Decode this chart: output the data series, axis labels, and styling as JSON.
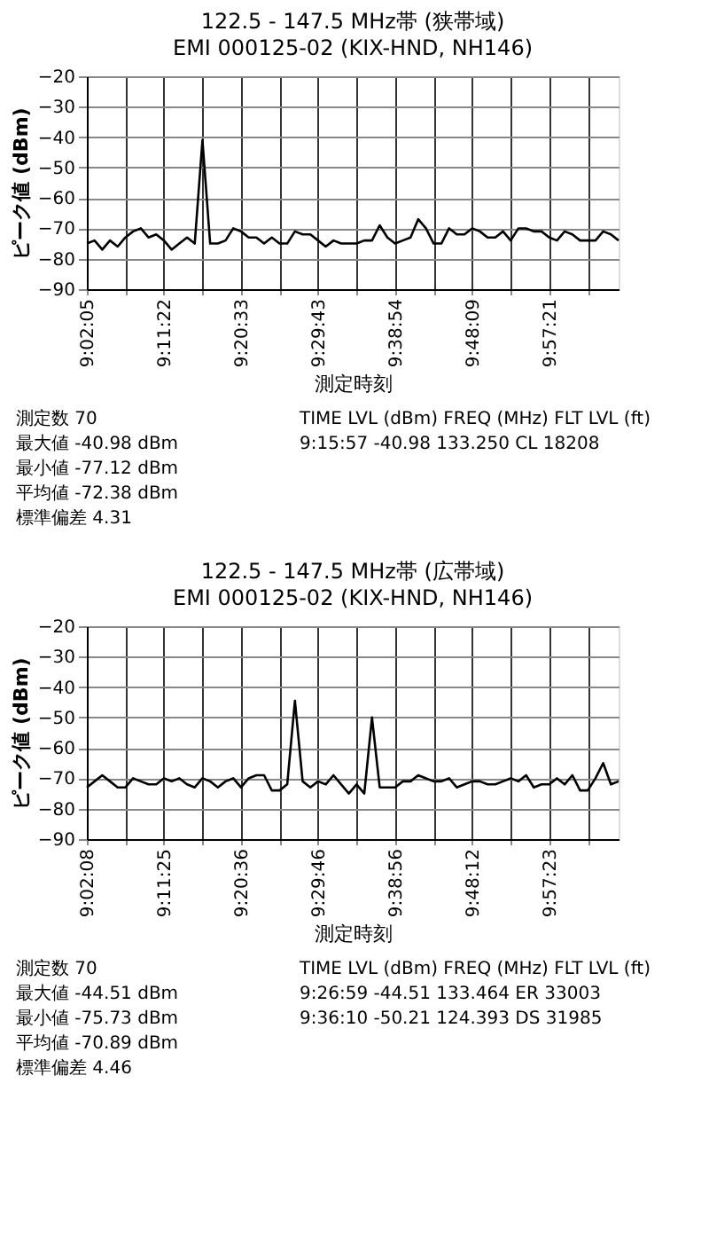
{
  "chart_data": [
    {
      "type": "line",
      "title": "122.5 - 147.5 MHz帯 (狭帯域)",
      "subtitle": "EMI 000125-02 (KIX-HND, NH146)",
      "xlabel": "測定時刻",
      "ylabel": "ピーク値 (dBm)",
      "categories": [
        "9:02:05",
        null,
        null,
        null,
        null,
        null,
        null,
        null,
        null,
        null,
        "9:11:22",
        null,
        null,
        null,
        null,
        null,
        null,
        null,
        null,
        null,
        "9:20:33",
        null,
        null,
        null,
        null,
        null,
        null,
        null,
        null,
        null,
        "9:29:43",
        null,
        null,
        null,
        null,
        null,
        null,
        null,
        null,
        null,
        "9:38:54",
        null,
        null,
        null,
        null,
        null,
        null,
        null,
        null,
        null,
        "9:48:09",
        null,
        null,
        null,
        null,
        null,
        null,
        null,
        null,
        null,
        "9:57:21",
        null,
        null,
        null,
        null,
        null,
        null,
        null,
        null,
        null
      ],
      "series": [
        {
          "color": "#000000",
          "values": [
            -75,
            -74,
            -77,
            -74,
            -76,
            -73,
            -71,
            -70,
            -73,
            -72,
            -74,
            -77,
            -75,
            -73,
            -75,
            -41,
            -75,
            -75,
            -74,
            -70,
            -71,
            -73,
            -73,
            -75,
            -73,
            -75,
            -75,
            -71,
            -72,
            -72,
            -74,
            -76,
            -74,
            -75,
            -75,
            -75,
            -74,
            -74,
            -69,
            -73,
            -75,
            -74,
            -73,
            -67,
            -70,
            -75,
            -75,
            -70,
            -72,
            -72,
            -70,
            -71,
            -73,
            -73,
            -71,
            -74,
            -70,
            -70,
            -71,
            -71,
            -73,
            -74,
            -71,
            -72,
            -74,
            -74,
            -74,
            -71,
            -72,
            -74
          ]
        }
      ],
      "ylim": [
        -90,
        -20
      ],
      "yticks": [
        -90,
        -80,
        -70,
        -60,
        -50,
        -40,
        -30,
        -20
      ],
      "grid": true,
      "marker": "none",
      "line_style": "solid",
      "annotations": [
        "測定数 70",
        "最大値 -40.98 dBm",
        "最小値 -77.12 dBm",
        "平均値 -72.38 dBm",
        "標準偏差 4.31",
        "TIME LVL (dBm) FREQ (MHz) FLT LVL (ft)",
        "9:15:57 -40.98 133.250 CL 18208"
      ]
    },
    {
      "type": "line",
      "title": "122.5 - 147.5 MHz帯 (広帯域)",
      "subtitle": "EMI 000125-02 (KIX-HND, NH146)",
      "xlabel": "測定時刻",
      "ylabel": "ピーク値 (dBm)",
      "categories": [
        "9:02:08",
        null,
        null,
        null,
        null,
        null,
        null,
        null,
        null,
        null,
        "9:11:25",
        null,
        null,
        null,
        null,
        null,
        null,
        null,
        null,
        null,
        "9:20:36",
        null,
        null,
        null,
        null,
        null,
        null,
        null,
        null,
        null,
        "9:29:46",
        null,
        null,
        null,
        null,
        null,
        null,
        null,
        null,
        null,
        "9:38:56",
        null,
        null,
        null,
        null,
        null,
        null,
        null,
        null,
        null,
        "9:48:12",
        null,
        null,
        null,
        null,
        null,
        null,
        null,
        null,
        null,
        "9:57:23",
        null,
        null,
        null,
        null,
        null,
        null,
        null,
        null,
        null
      ],
      "series": [
        {
          "color": "#000000",
          "values": [
            -73,
            -71,
            -69,
            -71,
            -73,
            -73,
            -70,
            -71,
            -72,
            -72,
            -70,
            -71,
            -70,
            -72,
            -73,
            -70,
            -71,
            -73,
            -71,
            -70,
            -73,
            -70,
            -69,
            -69,
            -74,
            -74,
            -72,
            -44.5,
            -71,
            -73,
            -71,
            -72,
            -69,
            -72,
            -75,
            -72,
            -75,
            -50,
            -73,
            -73,
            -73,
            -71,
            -71,
            -69,
            -70,
            -71,
            -71,
            -70,
            -73,
            -72,
            -71,
            -71,
            -72,
            -72,
            -71,
            -70,
            -71,
            -69,
            -73,
            -72,
            -72,
            -70,
            -72,
            -69,
            -74,
            -74,
            -70,
            -65,
            -72,
            -71
          ]
        }
      ],
      "ylim": [
        -90,
        -20
      ],
      "yticks": [
        -90,
        -80,
        -70,
        -60,
        -50,
        -40,
        -30,
        -20
      ],
      "grid": true,
      "marker": "none",
      "line_style": "solid",
      "annotations": [
        "測定数 70",
        "最大値 -44.51 dBm",
        "最小値 -75.73 dBm",
        "平均値 -70.89 dBm",
        "標準偏差 4.46",
        "TIME LVL (dBm) FREQ (MHz) FLT LVL (ft)",
        "9:26:59 -44.51 133.464 ER 33003",
        "9:36:10 -50.21 124.393 DS 31985"
      ]
    }
  ]
}
